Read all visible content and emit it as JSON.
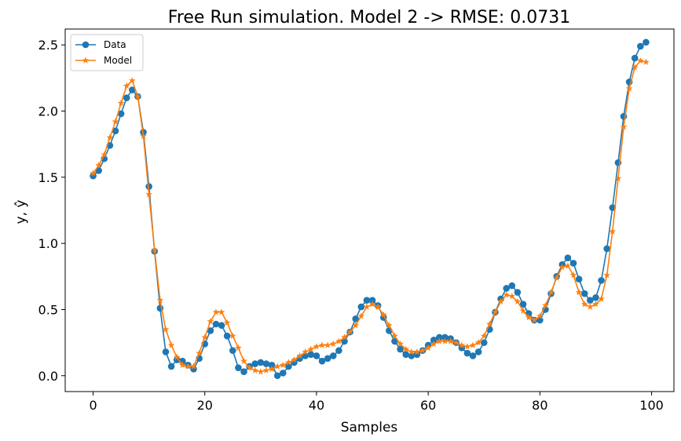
{
  "chart_data": {
    "type": "line",
    "title": "Free Run simulation. Model 2 -> RMSE: 0.0731",
    "xlabel": "Samples",
    "ylabel": "y, ŷ",
    "xlim": [
      -5,
      104
    ],
    "ylim": [
      -0.12,
      2.62
    ],
    "xticks": [
      0,
      20,
      40,
      60,
      80,
      100
    ],
    "yticks": [
      0.0,
      0.5,
      1.0,
      1.5,
      2.0,
      2.5
    ],
    "xtick_labels": [
      "0",
      "20",
      "40",
      "60",
      "80",
      "100"
    ],
    "ytick_labels": [
      "0.0",
      "0.5",
      "1.0",
      "1.5",
      "2.0",
      "2.5"
    ],
    "grid": false,
    "legend_position": "top-left",
    "series": [
      {
        "name": "Data",
        "color": "#1f77b4",
        "marker": "circle",
        "values": [
          1.51,
          1.55,
          1.64,
          1.74,
          1.85,
          1.98,
          2.1,
          2.16,
          2.11,
          1.84,
          1.43,
          0.94,
          0.51,
          0.18,
          0.07,
          0.12,
          0.11,
          0.08,
          0.05,
          0.13,
          0.24,
          0.34,
          0.39,
          0.38,
          0.3,
          0.19,
          0.06,
          0.03,
          0.07,
          0.09,
          0.1,
          0.09,
          0.08,
          0.0,
          0.02,
          0.07,
          0.1,
          0.13,
          0.15,
          0.16,
          0.15,
          0.11,
          0.13,
          0.15,
          0.19,
          0.26,
          0.33,
          0.43,
          0.52,
          0.57,
          0.57,
          0.53,
          0.44,
          0.34,
          0.26,
          0.2,
          0.16,
          0.15,
          0.16,
          0.19,
          0.23,
          0.27,
          0.29,
          0.29,
          0.28,
          0.25,
          0.21,
          0.17,
          0.15,
          0.18,
          0.25,
          0.35,
          0.48,
          0.58,
          0.66,
          0.68,
          0.63,
          0.54,
          0.47,
          0.42,
          0.42,
          0.5,
          0.62,
          0.75,
          0.84,
          0.89,
          0.85,
          0.73,
          0.62,
          0.57,
          0.59,
          0.72,
          0.96,
          1.27,
          1.61,
          1.96,
          2.22,
          2.4,
          2.49,
          2.52
        ]
      },
      {
        "name": "Model",
        "color": "#ff7f0e",
        "marker": "star",
        "values": [
          1.53,
          1.59,
          1.67,
          1.8,
          1.92,
          2.06,
          2.19,
          2.23,
          2.11,
          1.81,
          1.37,
          0.95,
          0.57,
          0.35,
          0.23,
          0.14,
          0.08,
          0.07,
          0.07,
          0.17,
          0.29,
          0.41,
          0.48,
          0.48,
          0.4,
          0.3,
          0.21,
          0.11,
          0.06,
          0.04,
          0.03,
          0.04,
          0.05,
          0.07,
          0.08,
          0.1,
          0.12,
          0.15,
          0.18,
          0.2,
          0.22,
          0.23,
          0.23,
          0.24,
          0.26,
          0.29,
          0.33,
          0.38,
          0.45,
          0.52,
          0.54,
          0.52,
          0.46,
          0.38,
          0.3,
          0.24,
          0.2,
          0.18,
          0.18,
          0.19,
          0.21,
          0.24,
          0.26,
          0.26,
          0.26,
          0.25,
          0.23,
          0.22,
          0.23,
          0.25,
          0.3,
          0.39,
          0.48,
          0.56,
          0.61,
          0.6,
          0.56,
          0.49,
          0.44,
          0.42,
          0.45,
          0.53,
          0.63,
          0.74,
          0.82,
          0.83,
          0.76,
          0.63,
          0.54,
          0.52,
          0.54,
          0.58,
          0.76,
          1.09,
          1.49,
          1.88,
          2.17,
          2.33,
          2.38,
          2.37
        ]
      }
    ]
  }
}
